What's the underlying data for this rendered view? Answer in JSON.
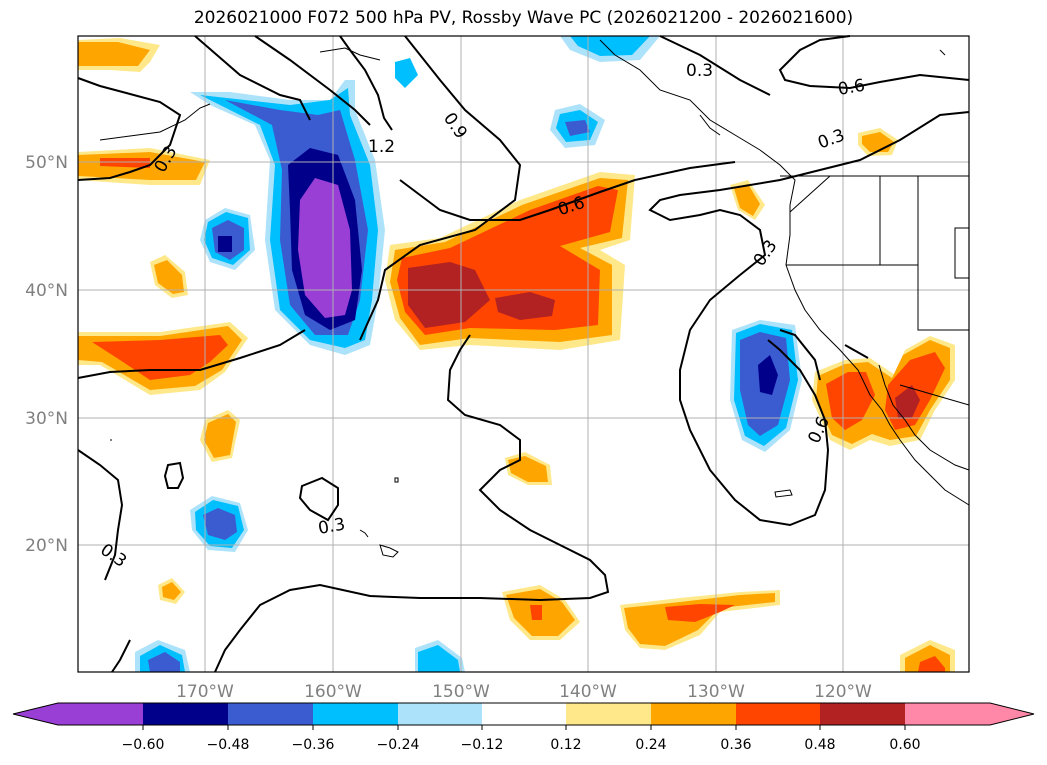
{
  "title": "2026021000 F072 500 hPa PV, Rossby Wave PC (2026021200 - 2026021600)",
  "map": {
    "lat_labels": [
      "50°N",
      "40°N",
      "30°N",
      "20°N"
    ],
    "lat_values": [
      50,
      40,
      30,
      20
    ],
    "lon_labels": [
      "170°W",
      "160°W",
      "150°W",
      "140°W",
      "130°W",
      "120°W"
    ],
    "lon_values": [
      -170,
      -160,
      -150,
      -140,
      -130,
      -120
    ],
    "contour_labels": [
      {
        "text": "1.2"
      },
      {
        "text": "0.9"
      },
      {
        "text": "0.6"
      },
      {
        "text": "0.3"
      },
      {
        "text": "0.6"
      },
      {
        "text": "0.3"
      },
      {
        "text": "0.3"
      },
      {
        "text": "0.3"
      },
      {
        "text": "0.3"
      },
      {
        "text": "0.6"
      },
      {
        "text": "0.3"
      }
    ]
  },
  "colorbar": {
    "ticks": [
      "−0.60",
      "−0.48",
      "−0.36",
      "−0.24",
      "−0.12",
      "0.12",
      "0.24",
      "0.36",
      "0.48",
      "0.60"
    ],
    "colors": [
      "#9a3fd6",
      "#00008b",
      "#3b5bd1",
      "#00bfff",
      "#ade2fb",
      "#ffffff",
      "#ffe88a",
      "#ffa500",
      "#ff4500",
      "#b22222",
      "#ff88a8"
    ],
    "bins": [
      "< -0.60",
      "-0.60 to -0.48",
      "-0.48 to -0.36",
      "-0.36 to -0.24",
      "-0.24 to -0.12",
      "-0.12 to 0.12",
      "0.12 to 0.24",
      "0.24 to 0.36",
      "0.36 to 0.48",
      "0.48 to 0.60",
      "> 0.60"
    ]
  }
}
